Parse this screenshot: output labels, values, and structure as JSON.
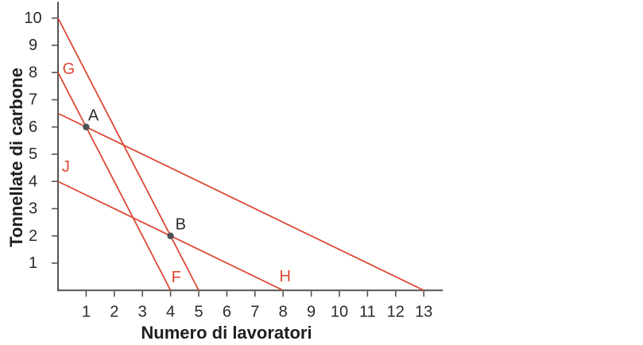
{
  "colors": {
    "line_red": "#dc4934",
    "axis": "#545454",
    "tick_text": "#2a2a2a",
    "point": "#4c5257",
    "point_label_text": "#2b2b2b"
  },
  "chart_data": {
    "type": "line",
    "title": "",
    "xlabel": "Numero di lavoratori",
    "ylabel": "Tonnellate di carbone",
    "xlim": [
      0,
      13.68
    ],
    "ylim": [
      0,
      10.6
    ],
    "grid": false,
    "legend": "none",
    "xticks": [
      1,
      2,
      3,
      4,
      5,
      6,
      7,
      8,
      9,
      10,
      11,
      12,
      13
    ],
    "yticks": [
      1,
      2,
      3,
      4,
      5,
      6,
      7,
      8,
      9,
      10
    ],
    "series": [
      {
        "name": "isocost-steep-through-B",
        "x": [
          0,
          5
        ],
        "y": [
          10,
          0
        ],
        "color": "#dc4934"
      },
      {
        "name": "isocost-G-F-through-A",
        "x": [
          0,
          4
        ],
        "y": [
          8,
          0
        ],
        "color": "#dc4934"
      },
      {
        "name": "isocost-flat-through-A",
        "x": [
          0,
          13
        ],
        "y": [
          6.5,
          0
        ],
        "color": "#dc4934"
      },
      {
        "name": "isocost-J-H-through-B",
        "x": [
          0,
          8
        ],
        "y": [
          4,
          0
        ],
        "color": "#dc4934"
      }
    ],
    "points": [
      {
        "label": "A",
        "x": 1,
        "y": 6
      },
      {
        "label": "B",
        "x": 4,
        "y": 2
      }
    ],
    "annotations": [
      {
        "text": "G",
        "x": 0.38,
        "y": 8.12,
        "color": "#dc4934"
      },
      {
        "text": "J",
        "x": 0.28,
        "y": 4.53,
        "color": "#dc4934"
      },
      {
        "text": "F",
        "x": 4.2,
        "y": 0.47,
        "color": "#dc4934"
      },
      {
        "text": "H",
        "x": 8.07,
        "y": 0.5,
        "color": "#dc4934"
      },
      {
        "text": "A",
        "x": 1.26,
        "y": 6.42,
        "color": "#2b2b2b"
      },
      {
        "text": "B",
        "x": 4.36,
        "y": 2.42,
        "color": "#2b2b2b"
      }
    ]
  }
}
